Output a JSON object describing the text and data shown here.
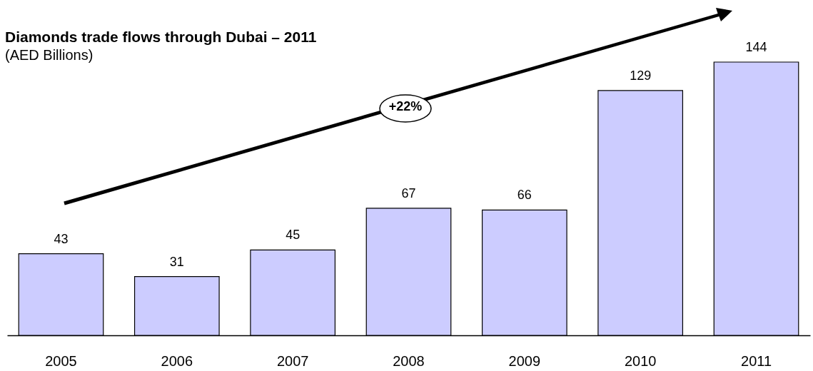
{
  "chart_data": {
    "type": "bar",
    "title": "Diamonds trade flows through Dubai – 2011",
    "subtitle": "(AED Billions)",
    "categories": [
      "2005",
      "2006",
      "2007",
      "2008",
      "2009",
      "2010",
      "2011"
    ],
    "values": [
      43,
      31,
      45,
      67,
      66,
      129,
      144
    ],
    "color": "#ccccff",
    "data_labels": true,
    "annotations": [
      "+22%"
    ]
  }
}
